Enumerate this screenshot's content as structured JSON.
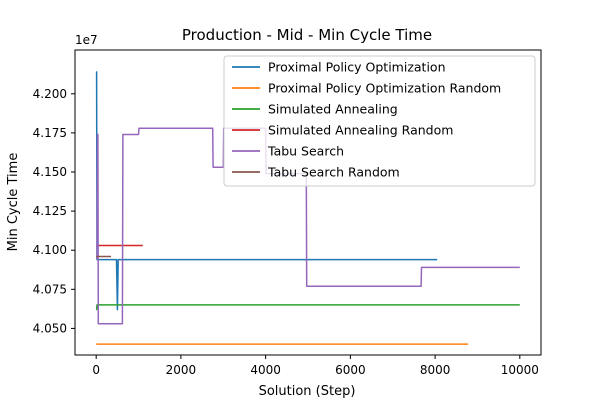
{
  "chart_data": {
    "type": "line",
    "title": "Production - Mid - Min Cycle Time",
    "xlabel": "Solution (Step)",
    "ylabel": "Min Cycle Time",
    "y_offset_label": "1e7",
    "xlim": [
      -500,
      10500
    ],
    "ylim": [
      40330000,
      42280000
    ],
    "x_ticks": [
      0,
      2000,
      4000,
      6000,
      8000,
      10000
    ],
    "x_tick_labels": [
      "0",
      "2000",
      "4000",
      "6000",
      "8000",
      "10000"
    ],
    "y_ticks": [
      40500000,
      40750000,
      41000000,
      41250000,
      41500000,
      41750000,
      42000000
    ],
    "y_tick_labels": [
      "4.050",
      "4.075",
      "4.100",
      "4.125",
      "4.150",
      "4.175",
      "4.200"
    ],
    "grid": false,
    "legend_position": "top-right",
    "series": [
      {
        "name": "Proximal Policy Optimization",
        "color": "#1f77b4",
        "points": [
          [
            0,
            42140000
          ],
          [
            10,
            42140000
          ],
          [
            20,
            40940000
          ],
          [
            480,
            40940000
          ],
          [
            500,
            40620000
          ],
          [
            520,
            40940000
          ],
          [
            8050,
            40940000
          ]
        ]
      },
      {
        "name": "Proximal Policy Optimization Random",
        "color": "#ff7f0e",
        "points": [
          [
            0,
            40400000
          ],
          [
            8780,
            40400000
          ]
        ]
      },
      {
        "name": "Simulated Annealing",
        "color": "#2ca02c",
        "points": [
          [
            0,
            40620000
          ],
          [
            10,
            40620000
          ],
          [
            20,
            40650000
          ],
          [
            10000,
            40650000
          ]
        ]
      },
      {
        "name": "Simulated Annealing Random",
        "color": "#d62728",
        "points": [
          [
            0,
            41030000
          ],
          [
            1100,
            41030000
          ]
        ]
      },
      {
        "name": "Tabu Search",
        "color": "#9467bd",
        "points": [
          [
            0,
            40950000
          ],
          [
            20,
            40950000
          ],
          [
            30,
            41740000
          ],
          [
            40,
            41740000
          ],
          [
            50,
            40530000
          ],
          [
            620,
            40530000
          ],
          [
            630,
            41740000
          ],
          [
            1000,
            41740000
          ],
          [
            1010,
            41780000
          ],
          [
            2750,
            41780000
          ],
          [
            2760,
            41530000
          ],
          [
            3000,
            41530000
          ],
          [
            3010,
            41780000
          ],
          [
            4000,
            41780000
          ],
          [
            4010,
            41490000
          ],
          [
            4960,
            41490000
          ],
          [
            4970,
            40770000
          ],
          [
            7670,
            40770000
          ],
          [
            7680,
            40890000
          ],
          [
            10000,
            40890000
          ]
        ]
      },
      {
        "name": "Tabu Search Random",
        "color": "#8c564b",
        "points": [
          [
            0,
            40960000
          ],
          [
            350,
            40960000
          ]
        ]
      }
    ]
  }
}
